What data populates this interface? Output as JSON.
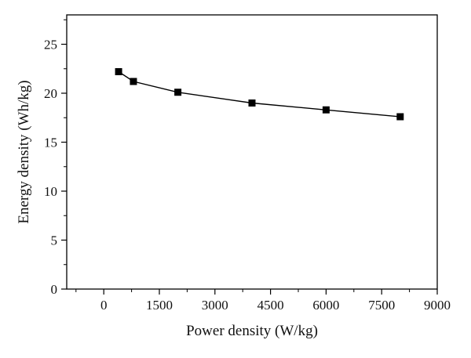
{
  "chart_data": {
    "type": "line",
    "title": "",
    "xlabel": "Power density (W/kg)",
    "ylabel": "Energy density (Wh/kg)",
    "xlim": [
      -1000,
      9000
    ],
    "ylim": [
      0,
      28
    ],
    "xticks": [
      0,
      1500,
      3000,
      4500,
      6000,
      7500,
      9000
    ],
    "yticks": [
      0,
      5,
      10,
      15,
      20,
      25
    ],
    "x": [
      400,
      800,
      2000,
      4000,
      6000,
      8000
    ],
    "series": [
      {
        "name": "",
        "values": [
          22.2,
          21.2,
          20.1,
          19.0,
          18.3,
          17.6
        ],
        "marker": "square",
        "color": "#000000"
      }
    ],
    "grid": false,
    "legend": "none"
  }
}
